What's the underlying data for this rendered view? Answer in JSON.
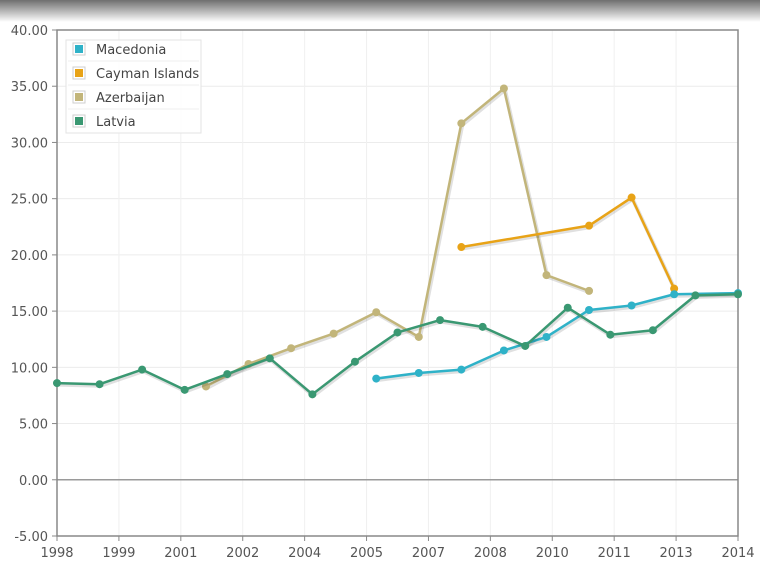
{
  "chart_data": {
    "type": "line",
    "x_tick_labels": [
      "1998",
      "1999",
      "2001",
      "2002",
      "2004",
      "2005",
      "2007",
      "2008",
      "2010",
      "2011",
      "2013",
      "2014"
    ],
    "y_tick_labels": [
      "40.00",
      "35.00",
      "30.00",
      "25.00",
      "20.00",
      "15.00",
      "10.00",
      "5.00",
      "0.00",
      "-5.00"
    ],
    "xlim": [
      1998,
      2014
    ],
    "ylim": [
      -5,
      40
    ],
    "y_ticks": [
      40,
      35,
      30,
      25,
      20,
      15,
      10,
      5,
      0,
      -5
    ],
    "grid": true,
    "legend_position": "top-left",
    "series": [
      {
        "name": "Macedonia",
        "color": "#2fb2c8",
        "x": [
          2005.5,
          2006.5,
          2007.5,
          2008.5,
          2009.5,
          2010.5,
          2011.5,
          2012.5,
          2014
        ],
        "y": [
          9.0,
          9.5,
          9.8,
          11.5,
          12.7,
          15.1,
          15.5,
          16.5,
          16.6
        ]
      },
      {
        "name": "Cayman Islands",
        "color": "#e8a317",
        "x": [
          2007.5,
          2010.5,
          2011.5,
          2012.5
        ],
        "y": [
          20.7,
          22.6,
          25.1,
          17.0
        ]
      },
      {
        "name": "Azerbaijan",
        "color": "#c2b57a",
        "x": [
          2001.5,
          2002.5,
          2003.5,
          2004.5,
          2005.5,
          2006.5,
          2007.5,
          2008.5,
          2009.5,
          2010.5,
          2011.5
        ],
        "y": [
          8.3,
          10.3,
          11.7,
          13.0,
          14.9,
          12.7,
          31.7,
          34.8,
          18.2,
          16.8,
          null
        ]
      },
      {
        "name": "Latvia",
        "color": "#3a9872",
        "x": [
          1998,
          1999,
          2000,
          2001,
          2002,
          2003,
          2004,
          2005,
          2006,
          2007,
          2008,
          2009,
          2010,
          2011,
          2012,
          2013,
          2014
        ],
        "y": [
          8.6,
          8.5,
          9.8,
          8.0,
          9.4,
          10.8,
          7.6,
          10.5,
          13.1,
          14.2,
          13.6,
          11.9,
          15.3,
          12.9,
          13.3,
          16.4,
          16.5
        ]
      }
    ]
  }
}
